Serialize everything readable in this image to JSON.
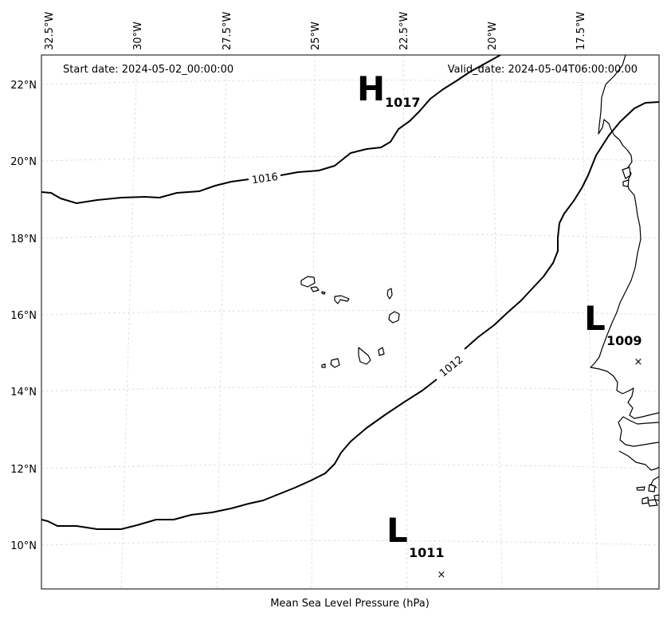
{
  "header": {
    "start_date": "Start date: 2024-05-02_00:00:00",
    "valid_date": "Valid_date: 2024-05-04T06:00:00.00"
  },
  "caption": "Mean Sea Level Pressure (hPa)",
  "longitude_ticks": [
    "32.5°W",
    "30°W",
    "27.5°W",
    "25°W",
    "22.5°W",
    "20°W",
    "17.5°W"
  ],
  "latitude_ticks": [
    "22°N",
    "20°N",
    "18°N",
    "16°N",
    "14°N",
    "12°N",
    "10°N"
  ],
  "isobars": [
    {
      "label": "1016"
    },
    {
      "label": "1012"
    }
  ],
  "pressure_centers": [
    {
      "letter": "H",
      "value": "1017"
    },
    {
      "letter": "L",
      "value": "1009"
    },
    {
      "letter": "L",
      "value": "1011"
    }
  ],
  "center_markers": [
    "×",
    "×"
  ]
}
